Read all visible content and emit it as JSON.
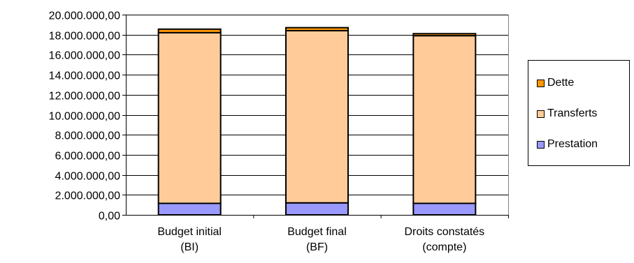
{
  "chart_data": {
    "type": "stacked-bar",
    "categories": [
      [
        "Budget initial",
        "(BI)"
      ],
      [
        "Budget final",
        "(BF)"
      ],
      [
        "Droits constatés",
        "(compte)"
      ]
    ],
    "series": [
      {
        "name": "Prestation",
        "color": "#9999FF",
        "values": [
          1150000,
          1200000,
          1150000
        ]
      },
      {
        "name": "Transferts",
        "color": "#FFCC99",
        "values": [
          17050000,
          17200000,
          16750000
        ]
      },
      {
        "name": "Dette",
        "color": "#FF9900",
        "values": [
          350000,
          300000,
          200000
        ]
      }
    ],
    "y_ticks": [
      "0,00",
      "2.000.000,00",
      "4.000.000,00",
      "6.000.000,00",
      "8.000.000,00",
      "10.000.000,00",
      "12.000.000,00",
      "14.000.000,00",
      "16.000.000,00",
      "18.000.000,00",
      "20.000.000,00"
    ],
    "ylim": [
      0,
      20000000
    ],
    "grid": true,
    "legend_position": "right",
    "legend_order": [
      "Dette",
      "Transferts",
      "Prestation"
    ],
    "plot_background": "#ffffff",
    "grid_color": "#000000"
  }
}
